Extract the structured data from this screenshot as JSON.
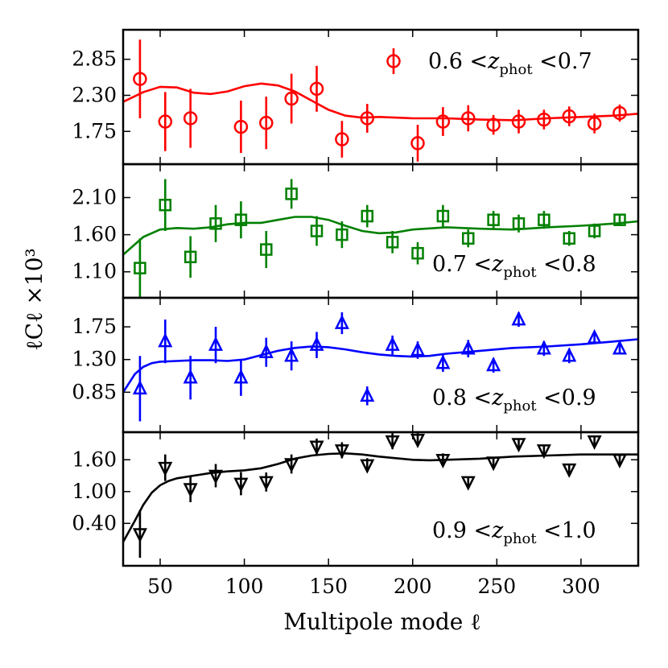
{
  "chart_data": {
    "type": "scatter",
    "xlabel": "Multipole mode ℓ",
    "ylabel": "ℓCℓ ×10³",
    "xlim": [
      28,
      334
    ],
    "xticks": [
      50,
      100,
      150,
      200,
      250,
      300
    ],
    "xtick_labels": [
      "50",
      "100",
      "150",
      "200",
      "250",
      "300"
    ],
    "panels": [
      {
        "name": "panel-1",
        "label": "0.6 <zₚₕₒₜ <0.7",
        "label_parts": {
          "pre": "0.6 <",
          "var": "z",
          "sub": "phot",
          "post": " <0.7"
        },
        "color": "#ff0000",
        "marker": "circle",
        "legend_marker": true,
        "ylim": [
          1.25,
          3.3
        ],
        "yticks": [
          1.75,
          2.3,
          2.85
        ],
        "ytick_labels": [
          "1.75",
          "2.30",
          "2.85"
        ],
        "x": [
          38,
          53,
          68,
          98,
          113,
          128,
          143,
          158,
          173,
          203,
          218,
          233,
          248,
          263,
          278,
          293,
          308,
          323
        ],
        "y": [
          2.55,
          1.9,
          1.95,
          1.82,
          1.88,
          2.25,
          2.4,
          1.63,
          1.95,
          1.57,
          1.9,
          1.95,
          1.85,
          1.9,
          1.93,
          1.98,
          1.87,
          2.03
        ],
        "yerr": [
          0.6,
          0.45,
          0.45,
          0.4,
          0.4,
          0.38,
          0.35,
          0.28,
          0.22,
          0.28,
          0.22,
          0.2,
          0.15,
          0.18,
          0.15,
          0.15,
          0.15,
          0.13
        ],
        "model_x": [
          28,
          40,
          50,
          60,
          70,
          80,
          90,
          100,
          110,
          120,
          130,
          140,
          150,
          160,
          170,
          180,
          200,
          220,
          240,
          260,
          280,
          300,
          320,
          334
        ],
        "model_y": [
          2.2,
          2.35,
          2.43,
          2.42,
          2.34,
          2.32,
          2.36,
          2.44,
          2.48,
          2.45,
          2.36,
          2.22,
          2.08,
          1.99,
          1.96,
          1.97,
          1.95,
          1.95,
          1.93,
          1.92,
          1.95,
          1.97,
          1.99,
          2.02
        ]
      },
      {
        "name": "panel-2",
        "label": "0.7 <zₚₕₒₜ <0.8",
        "label_parts": {
          "pre": "0.7 <",
          "var": "z",
          "sub": "phot",
          "post": " <0.8"
        },
        "color": "#008000",
        "marker": "square",
        "legend_marker": false,
        "ylim": [
          0.75,
          2.55
        ],
        "yticks": [
          1.1,
          1.6,
          2.1
        ],
        "ytick_labels": [
          "1.10",
          "1.60",
          "2.10"
        ],
        "x": [
          38,
          53,
          68,
          83,
          98,
          113,
          128,
          143,
          158,
          173,
          188,
          203,
          218,
          233,
          248,
          263,
          278,
          293,
          308,
          323
        ],
        "y": [
          1.15,
          2.0,
          1.3,
          1.75,
          1.8,
          1.4,
          2.15,
          1.65,
          1.6,
          1.85,
          1.5,
          1.35,
          1.85,
          1.55,
          1.8,
          1.75,
          1.8,
          1.55,
          1.65,
          1.8
        ],
        "yerr": [
          0.4,
          0.35,
          0.28,
          0.25,
          0.25,
          0.25,
          0.2,
          0.2,
          0.18,
          0.15,
          0.15,
          0.15,
          0.15,
          0.12,
          0.12,
          0.12,
          0.12,
          0.1,
          0.1,
          0.08
        ],
        "model_x": [
          28,
          40,
          50,
          60,
          70,
          80,
          90,
          100,
          110,
          120,
          130,
          140,
          150,
          160,
          170,
          180,
          190,
          200,
          220,
          240,
          260,
          280,
          300,
          320,
          334
        ],
        "model_y": [
          1.33,
          1.57,
          1.67,
          1.69,
          1.68,
          1.7,
          1.74,
          1.76,
          1.76,
          1.8,
          1.84,
          1.84,
          1.8,
          1.72,
          1.65,
          1.62,
          1.63,
          1.67,
          1.7,
          1.68,
          1.67,
          1.7,
          1.72,
          1.75,
          1.78
        ]
      },
      {
        "name": "panel-3",
        "label": "0.8 <zₚₕₒₜ <0.9",
        "label_parts": {
          "pre": "0.8 <",
          "var": "z",
          "sub": "phot",
          "post": " <0.9"
        },
        "color": "#0000ff",
        "marker": "triangle-up",
        "legend_marker": false,
        "ylim": [
          0.3,
          2.15
        ],
        "yticks": [
          0.85,
          1.3,
          1.75
        ],
        "ytick_labels": [
          "0.85",
          "1.30",
          "1.75"
        ],
        "x": [
          38,
          53,
          68,
          83,
          98,
          113,
          128,
          143,
          158,
          173,
          188,
          203,
          218,
          233,
          248,
          263,
          278,
          293,
          308,
          323
        ],
        "y": [
          0.9,
          1.55,
          1.05,
          1.5,
          1.05,
          1.4,
          1.35,
          1.5,
          1.8,
          0.8,
          1.5,
          1.43,
          1.25,
          1.45,
          1.22,
          1.85,
          1.45,
          1.35,
          1.6,
          1.45
        ],
        "yerr": [
          0.45,
          0.3,
          0.3,
          0.25,
          0.25,
          0.2,
          0.2,
          0.18,
          0.15,
          0.13,
          0.13,
          0.12,
          0.12,
          0.12,
          0.1,
          0.1,
          0.1,
          0.1,
          0.08,
          0.08
        ],
        "model_x": [
          28,
          35,
          40,
          45,
          50,
          60,
          70,
          80,
          90,
          100,
          110,
          120,
          130,
          140,
          150,
          160,
          170,
          180,
          190,
          200,
          210,
          220,
          240,
          260,
          280,
          300,
          320,
          334
        ],
        "model_y": [
          0.85,
          1.1,
          1.2,
          1.25,
          1.27,
          1.28,
          1.29,
          1.29,
          1.28,
          1.3,
          1.36,
          1.42,
          1.46,
          1.48,
          1.47,
          1.44,
          1.4,
          1.37,
          1.35,
          1.34,
          1.35,
          1.38,
          1.42,
          1.46,
          1.48,
          1.51,
          1.55,
          1.58
        ]
      },
      {
        "name": "panel-4",
        "label": "0.9 <zₚₕₒₜ <1.0",
        "label_parts": {
          "pre": "0.9 <",
          "var": "z",
          "sub": "phot",
          "post": " <1.0"
        },
        "color": "#000000",
        "marker": "triangle-down",
        "legend_marker": false,
        "ylim": [
          -0.4,
          2.12
        ],
        "yticks": [
          0.4,
          1.0,
          1.6
        ],
        "ytick_labels": [
          "0.40",
          "1.00",
          "1.60"
        ],
        "x": [
          38,
          53,
          68,
          83,
          98,
          113,
          128,
          143,
          158,
          173,
          188,
          203,
          218,
          233,
          248,
          263,
          278,
          293,
          308,
          323
        ],
        "y": [
          0.2,
          1.45,
          1.05,
          1.3,
          1.15,
          1.18,
          1.52,
          1.85,
          1.78,
          1.5,
          1.95,
          1.98,
          1.6,
          1.18,
          1.55,
          1.9,
          1.78,
          1.42,
          1.95,
          1.6
        ],
        "yerr": [
          0.45,
          0.25,
          0.25,
          0.22,
          0.22,
          0.18,
          0.18,
          0.15,
          0.15,
          0.13,
          0.15,
          0.12,
          0.12,
          0.1,
          0.1,
          0.1,
          0.1,
          0.1,
          0.08,
          0.08
        ],
        "model_x": [
          28,
          35,
          40,
          45,
          50,
          55,
          60,
          70,
          80,
          90,
          100,
          110,
          120,
          130,
          140,
          150,
          160,
          170,
          180,
          190,
          200,
          210,
          220,
          240,
          260,
          280,
          300,
          320,
          334
        ],
        "model_y": [
          0.05,
          0.45,
          0.75,
          0.98,
          1.12,
          1.2,
          1.25,
          1.3,
          1.35,
          1.38,
          1.4,
          1.44,
          1.52,
          1.62,
          1.68,
          1.71,
          1.72,
          1.7,
          1.66,
          1.63,
          1.6,
          1.59,
          1.6,
          1.62,
          1.66,
          1.68,
          1.7,
          1.7,
          1.7
        ]
      }
    ]
  }
}
